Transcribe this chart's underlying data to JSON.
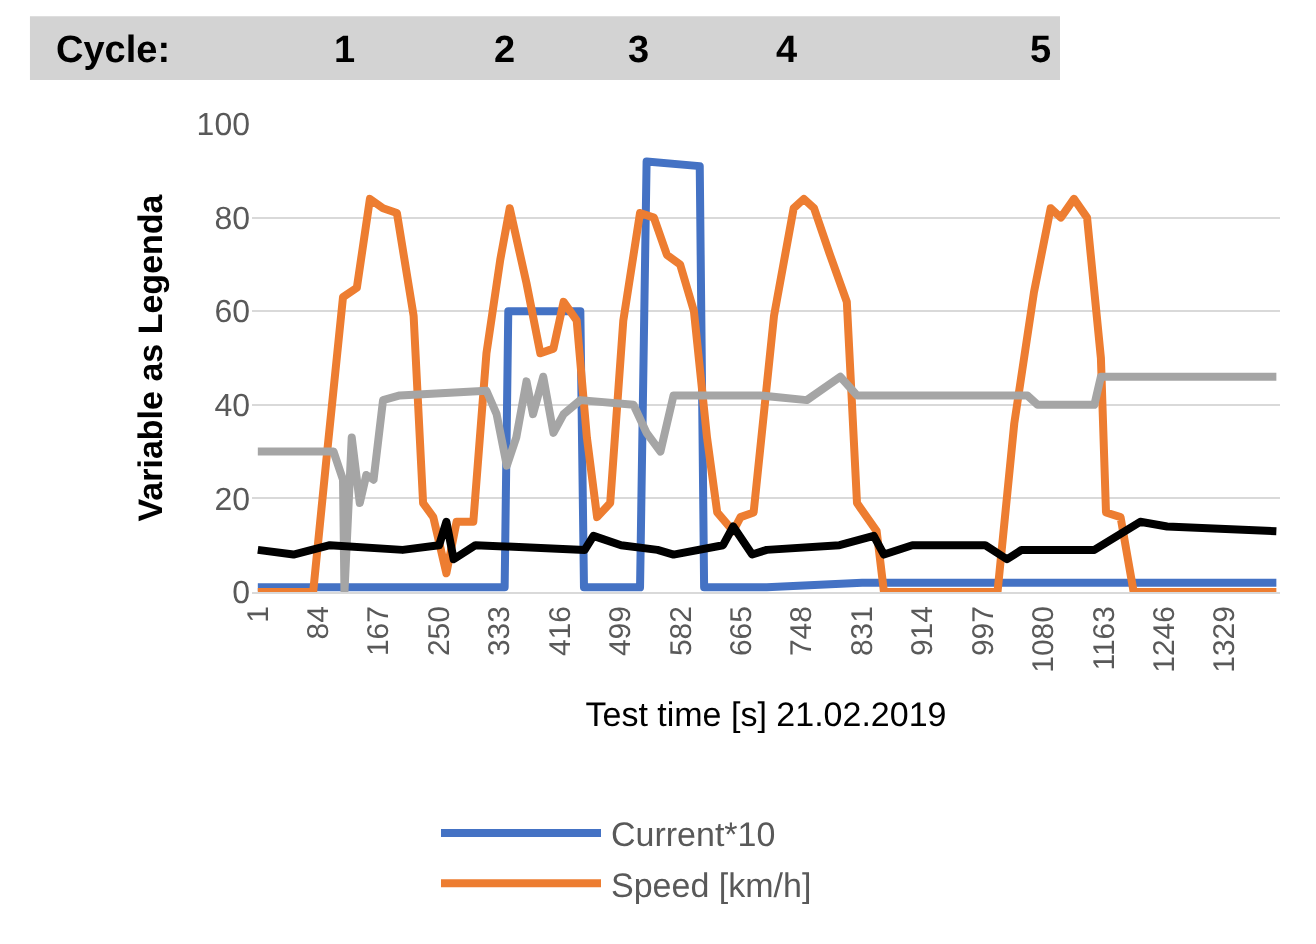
{
  "chart_data": {
    "type": "line",
    "xlabel": "Test time [s] 21.02.2019",
    "ylabel": "Variable as Legenda",
    "annotations": [
      "Cycle:",
      "1",
      "2",
      "3",
      "4",
      "5"
    ],
    "xlim": [
      -7,
      1405
    ],
    "xticks": [
      1,
      84,
      167,
      250,
      333,
      416,
      499,
      582,
      665,
      748,
      831,
      914,
      997,
      1080,
      1163,
      1246,
      1329
    ],
    "ylim": [
      0,
      100
    ],
    "yticks": [
      0,
      20,
      40,
      60,
      80,
      100
    ],
    "grid": "y",
    "legend": "bottom",
    "marker": "none",
    "line_style": "solid",
    "series": [
      {
        "name": "Current*10",
        "color": "#4472c4",
        "x": [
          1,
          200,
          340,
          345,
          444,
          449,
          520,
          526,
          535,
          608,
          614,
          700,
          831,
          1000,
          1400
        ],
        "values": [
          1,
          1,
          1,
          60,
          60,
          1,
          1,
          1,
          92,
          91,
          1,
          1,
          2,
          2,
          2
        ]
      },
      {
        "name": "Speed [km/h]",
        "color": "#ed7d31",
        "x": [
          1,
          77,
          95,
          118,
          137,
          155,
          173,
          192,
          215,
          228,
          242,
          260,
          274,
          297,
          315,
          334,
          347,
          370,
          389,
          407,
          421,
          439,
          453,
          467,
          485,
          503,
          526,
          545,
          563,
          581,
          600,
          618,
          632,
          654,
          664,
          682,
          710,
          737,
          751,
          765,
          787,
          810,
          824,
          851,
          861,
          1017,
          1040,
          1067,
          1090,
          1104,
          1122,
          1140,
          1159,
          1166,
          1186,
          1204,
          1400
        ],
        "values": [
          0,
          0,
          28,
          63,
          65,
          84,
          82,
          81,
          59,
          19,
          16,
          4,
          15,
          15,
          51,
          71,
          82,
          66,
          51,
          52,
          62,
          58,
          33,
          16,
          19,
          58,
          81,
          80,
          72,
          70,
          60,
          33,
          17,
          13,
          16,
          17,
          59,
          82,
          84,
          82,
          72,
          62,
          19,
          13,
          0,
          0,
          36,
          64,
          82,
          80,
          84,
          80,
          50,
          17,
          16,
          0,
          0
        ]
      },
      {
        "color": "#a5a5a5",
        "x": [
          1,
          105,
          118,
          120,
          130,
          141,
          150,
          160,
          173,
          196,
          315,
          329,
          343,
          356,
          370,
          379,
          393,
          407,
          421,
          444,
          517,
          535,
          554,
          572,
          691,
          755,
          801,
          824,
          1058,
          1072,
          1150,
          1159,
          1400
        ],
        "values": [
          30,
          30,
          24,
          0,
          33,
          19,
          25,
          24,
          41,
          42,
          43,
          38,
          27,
          33,
          45,
          38,
          46,
          34,
          38,
          41,
          40,
          34,
          30,
          42,
          42,
          41,
          46,
          42,
          42,
          40,
          40,
          46,
          46
        ]
      },
      {
        "color": "#000000",
        "x": [
          1,
          50,
          100,
          200,
          250,
          260,
          270,
          300,
          450,
          462,
          500,
          550,
          572,
          640,
          654,
          680,
          700,
          800,
          847,
          861,
          900,
          1000,
          1030,
          1050,
          1150,
          1213,
          1250,
          1400
        ],
        "values": [
          9,
          8,
          10,
          9,
          10,
          15,
          7,
          10,
          9,
          12,
          10,
          9,
          8,
          10,
          14,
          8,
          9,
          10,
          12,
          8,
          10,
          10,
          7,
          9,
          9,
          15,
          14,
          13
        ]
      }
    ]
  }
}
